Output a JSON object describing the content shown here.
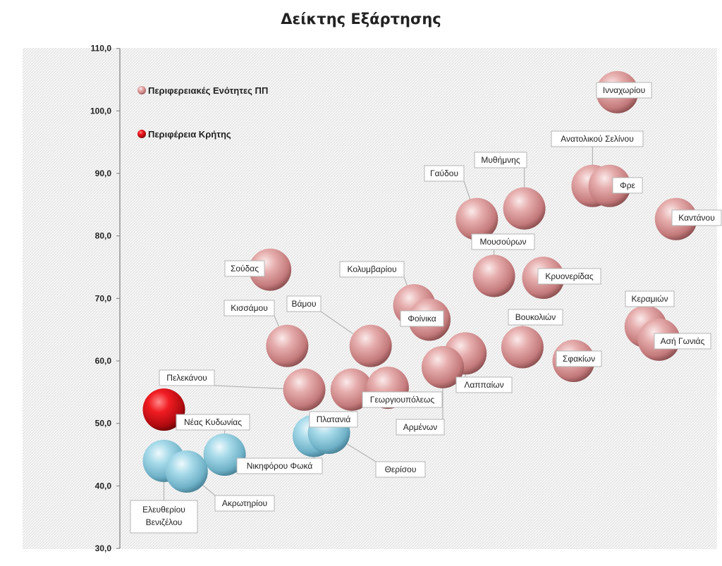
{
  "chart_data": {
    "type": "scatter",
    "title": "Δείκτης Εξάρτησης",
    "xlabel": "",
    "ylabel": "",
    "ylim": [
      30,
      110
    ],
    "yticks": [
      "30,0",
      "40,0",
      "50,0",
      "60,0",
      "70,0",
      "80,0",
      "90,0",
      "100,0",
      "110,0"
    ],
    "grid": false,
    "legend": {
      "position": "top-left",
      "entries": [
        {
          "name": "Περιφερειακές Ενότητες ΠΠ",
          "color": "#e3a4a4"
        },
        {
          "name": "Περιφέρεια Κρήτης",
          "color": "#e0151b"
        }
      ]
    },
    "series": [
      {
        "name": "Περιφερειακές Ενότητες ΠΠ",
        "color": "#e3a4a4",
        "points": [
          {
            "label": "Ινναχωρίου",
            "x": 26,
            "y": 103.0
          },
          {
            "label": "Ανατολικού Σελίνου",
            "x": 24.7,
            "y": 88.0
          },
          {
            "label": "Φρε",
            "x": 25.6,
            "y": 88.0
          },
          {
            "label": "Καντάνου",
            "x": 29.1,
            "y": 82.7
          },
          {
            "label": "Γαύδου",
            "x": 18.6,
            "y": 82.7
          },
          {
            "label": "Μυθήμνης",
            "x": 21.1,
            "y": 84.4
          },
          {
            "label": "Μουσούρων",
            "x": 19.5,
            "y": 73.6
          },
          {
            "label": "Κρυονερίδας",
            "x": 22.1,
            "y": 73.3
          },
          {
            "label": "Σούδας",
            "x": 7.7,
            "y": 74.6
          },
          {
            "label": "Κολυμβαρίου",
            "x": 15.3,
            "y": 68.9
          },
          {
            "label": "Φοίνικα",
            "x": 16.1,
            "y": 66.6
          },
          {
            "label": "Κεραμιών",
            "x": 27.5,
            "y": 65.5
          },
          {
            "label": "Ασή Γωνιάς",
            "x": 28.2,
            "y": 63.4
          },
          {
            "label": "Βουκολιών",
            "x": 21.0,
            "y": 62.2
          },
          {
            "label": "Σφακίων",
            "x": 23.7,
            "y": 60.0
          },
          {
            "label": "Λαππαίων",
            "x": 18.0,
            "y": 61.2
          },
          {
            "label": "Κισσάμου",
            "x": 8.6,
            "y": 62.4
          },
          {
            "label": "Βάμου",
            "x": 13.0,
            "y": 62.4
          },
          {
            "label": "Αρμένων",
            "x": 16.8,
            "y": 59.0
          },
          {
            "label": "Πελεκάνου",
            "x": 9.5,
            "y": 55.4
          },
          {
            "label": "Πλατανιά",
            "x": 12.0,
            "y": 55.4
          },
          {
            "label": "Γεωργιουπόλεως",
            "x": 13.9,
            "y": 55.7
          }
        ]
      },
      {
        "name": "Περιφέρεια Κρήτης",
        "color": "#e0151b",
        "points": [
          {
            "label": "",
            "x": 2.1,
            "y": 52.2
          }
        ]
      },
      {
        "name": "",
        "color": "#9fd3e4",
        "points": [
          {
            "label": "Νέας Κυδωνίας",
            "x": 5.3,
            "y": 45.0
          },
          {
            "label": "Νικηφόρου Φωκά",
            "x": 10.0,
            "y": 48.0
          },
          {
            "label": "Θερίσου",
            "x": 10.8,
            "y": 48.5
          },
          {
            "label": "Ελευθερίου Βενιζέλου",
            "x": 2.1,
            "y": 44.0
          },
          {
            "label": "Ακρωτηρίου",
            "x": 3.3,
            "y": 42.3
          }
        ]
      }
    ]
  },
  "label_boxes": [
    {
      "text": "Ινναχωρίου"
    },
    {
      "text": "Ανατολικού Σελίνου"
    },
    {
      "text": "Φρε"
    },
    {
      "text": "Καντάνου"
    },
    {
      "text": "Γαύδου"
    },
    {
      "text": "Μυθήμνης"
    },
    {
      "text": "Μουσούρων"
    },
    {
      "text": "Κρυονερίδας"
    },
    {
      "text": "Σούδας"
    },
    {
      "text": "Κολυμβαρίου"
    },
    {
      "text": "Φοίνικα"
    },
    {
      "text": "Κεραμιών"
    },
    {
      "text": "Ασή Γωνιάς"
    },
    {
      "text": "Βουκολιών"
    },
    {
      "text": "Σφακίων"
    },
    {
      "text": "Λαππαίων"
    },
    {
      "text": "Κισσάμου"
    },
    {
      "text": "Βάμου"
    },
    {
      "text": "Αρμένων"
    },
    {
      "text": "Πελεκάνου"
    },
    {
      "text": "Πλατανιά"
    },
    {
      "text": "Γεωργιουπόλεως"
    },
    {
      "text": "Νέας Κυδωνίας"
    },
    {
      "text": "Νικηφόρου Φωκά"
    },
    {
      "text": "Θερίσου"
    },
    {
      "text": "Ελευθερίου Βενιζέλου"
    },
    {
      "text": "Ακρωτηρίου"
    }
  ]
}
